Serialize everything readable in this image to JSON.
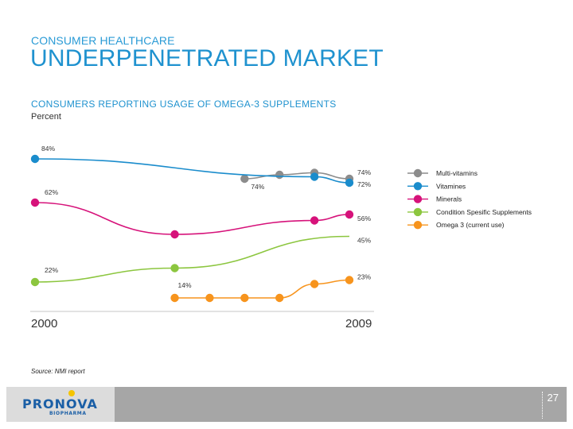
{
  "header": {
    "kicker": "CONSUMER HEALTHCARE",
    "title": "UNDERPENETRATED MARKET"
  },
  "chart_data": {
    "type": "line",
    "title": "CONSUMERS REPORTING USAGE OF OMEGA-3 SUPPLEMENTS",
    "unit": "Percent",
    "x_start_label": "2000",
    "x_end_label": "2009",
    "grid": false,
    "legend_position": "right",
    "series": [
      {
        "name": "Multi-vitamins",
        "color": "#8c8c8c",
        "points": [
          {
            "x": 2006.0,
            "y": 74,
            "label": "74%"
          },
          {
            "x": 2007.0,
            "y": 76
          },
          {
            "x": 2008.0,
            "y": 77
          },
          {
            "x": 2009.0,
            "y": 74,
            "label": "74%"
          }
        ],
        "start_marker": true,
        "end_marker": true,
        "start_x": 2006.0
      },
      {
        "name": "Vitamines",
        "color": "#1a8ccc",
        "points": [
          {
            "x": 2000.0,
            "y": 84,
            "label": "84%"
          },
          {
            "x": 2008.0,
            "y": 75
          },
          {
            "x": 2009.0,
            "y": 72,
            "label": "72%"
          }
        ]
      },
      {
        "name": "Minerals",
        "color": "#d6127a",
        "points": [
          {
            "x": 2000.0,
            "y": 62,
            "label": "62%"
          },
          {
            "x": 2004.0,
            "y": 46
          },
          {
            "x": 2008.0,
            "y": 53
          },
          {
            "x": 2009.0,
            "y": 56,
            "label": "56%"
          }
        ]
      },
      {
        "name": "Condition Spesific Supplements",
        "color": "#8cc63f",
        "points": [
          {
            "x": 2000.0,
            "y": 22,
            "label": "22%"
          },
          {
            "x": 2004.0,
            "y": 29
          },
          {
            "x": 2009.0,
            "y": 45,
            "label": "45%"
          }
        ]
      },
      {
        "name": "Omega 3 (current use)",
        "color": "#f7941d",
        "points": [
          {
            "x": 2004.0,
            "y": 14,
            "label": "14%"
          },
          {
            "x": 2005.0,
            "y": 14
          },
          {
            "x": 2006.0,
            "y": 14
          },
          {
            "x": 2007.0,
            "y": 14
          },
          {
            "x": 2008.0,
            "y": 21
          },
          {
            "x": 2009.0,
            "y": 23,
            "label": "23%"
          }
        ]
      }
    ]
  },
  "source": "Source: NMI report",
  "footer": {
    "logo_text": "PRONOVA",
    "logo_sub": "BIOPHARMA",
    "page_number": "27"
  }
}
